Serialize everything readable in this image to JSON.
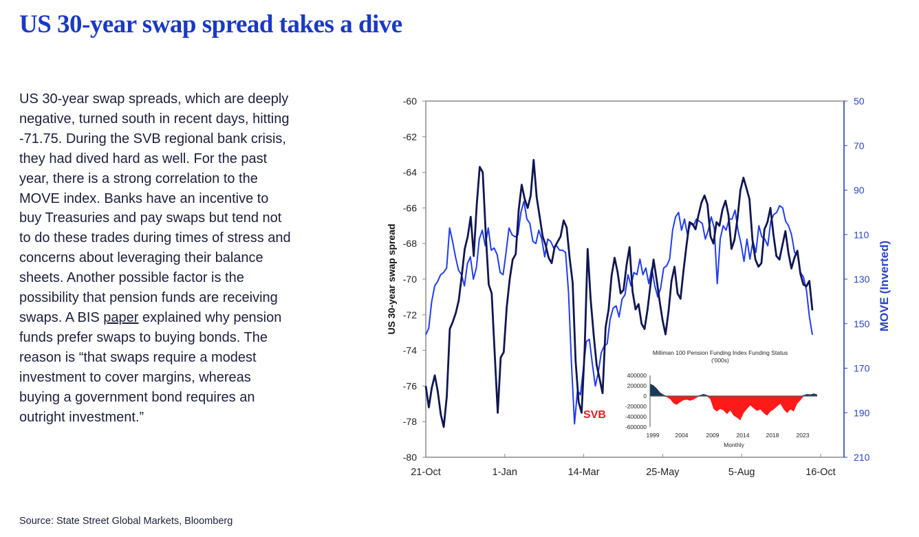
{
  "page": {
    "title": "US 30-year swap spread takes a dive",
    "body_part1": "US 30-year swap spreads, which are deeply negative, turned south in recent days, hitting -71.75. During the SVB regional bank crisis, they had dived hard as well. For the past year, there is a strong correlation to the MOVE index. Banks have an incentive to buy Treasuries and pay swaps but tend not to do these trades during times of stress and concerns about leveraging their balance sheets. Another possible factor is the possibility that pension funds are receiving swaps. A BIS ",
    "body_link": "paper",
    "body_part2": " explained why pension funds prefer swaps to buying bonds. The reason is “that swaps require a modest investment to cover margins, whereas buying a government bond requires an outright investment.”",
    "source": "Source: State Street Global Markets, Bloomberg"
  },
  "chart_data": [
    {
      "type": "line",
      "ylabel": "US 30-year swap spread",
      "y2label": "MOVE (Inverted)",
      "x_ticks": [
        "21-Oct",
        "1-Jan",
        "14-Mar",
        "25-May",
        "5-Aug",
        "16-Oct"
      ],
      "ylim": [
        -80,
        -60
      ],
      "y_ticks": [
        "-60",
        "-62",
        "-64",
        "-66",
        "-68",
        "-70",
        "-72",
        "-74",
        "-76",
        "-78",
        "-80"
      ],
      "y2lim": [
        50,
        210
      ],
      "y2_inverted": true,
      "y2_ticks": [
        "50",
        "70",
        "90",
        "110",
        "130",
        "150",
        "170",
        "190",
        "210"
      ],
      "annotation": "SVB",
      "colors": {
        "swap": "#0f1650",
        "move": "#1f3cf0",
        "axis_right": "#2a44c9",
        "annotation": "#e02020"
      },
      "series": [
        {
          "key": "swap",
          "values": [
            -76,
            -77.2,
            -76.1,
            -75.4,
            -76.3,
            -77.6,
            -78.3,
            -76.6,
            -72.8,
            -72.4,
            -71.9,
            -71.2,
            -69.8,
            -68.3,
            -67.6,
            -66.5,
            -68.7,
            -65.8,
            -63.7,
            -64,
            -67.4,
            -70.3,
            -70.8,
            -74.2,
            -77.5,
            -74.4,
            -74.1,
            -71.6,
            -70,
            -68.9,
            -68.6,
            -66.1,
            -64.7,
            -65.5,
            -66,
            -65.3,
            -63.3,
            -65.4,
            -66.5,
            -67.6,
            -68.1,
            -68.8,
            -69.1,
            -68.2,
            -67.9,
            -67.6,
            -66.7,
            -67.1,
            -68.8,
            -70.2,
            -74.6,
            -76.9,
            -77.5,
            -74,
            -68.3,
            -71.1,
            -73.1,
            -74.8,
            -75.6,
            -76.4,
            -72.7,
            -71.7,
            -69.8,
            -68.8,
            -69.6,
            -70.8,
            -70.6,
            -69.2,
            -68.2,
            -70.7,
            -71.7,
            -71.4,
            -72.5,
            -72.8,
            -71.7,
            -70.3,
            -68.9,
            -70,
            -71.2,
            -72.3,
            -73.1,
            -71.8,
            -70.1,
            -69.3,
            -70.8,
            -71.1,
            -69.5,
            -68.1,
            -66.8,
            -66.9,
            -67.2,
            -66.4,
            -65.7,
            -65.3,
            -65.8,
            -67.6,
            -68,
            -66.8,
            -67,
            -66.1,
            -65.6,
            -66.4,
            -68.3,
            -67.8,
            -66.6,
            -65,
            -64.3,
            -64.9,
            -65.5,
            -67.8,
            -68.9,
            -69.3,
            -69.1,
            -67.2,
            -66.8,
            -66,
            -67.5,
            -68.7,
            -68.9,
            -68.1,
            -67.3,
            -68.5,
            -69.4,
            -68.8,
            -68.4,
            -69.7,
            -70.3,
            -70.4,
            -70.1,
            -71.75
          ]
        },
        {
          "key": "move",
          "values": [
            155,
            152,
            140,
            133,
            131,
            128,
            127,
            125,
            107,
            113,
            120,
            126,
            128,
            133,
            123,
            120,
            130,
            125,
            112,
            108,
            115,
            107,
            117,
            116,
            119,
            127,
            128,
            118,
            107,
            110,
            111,
            110,
            100,
            95,
            103,
            105,
            113,
            114,
            108,
            112,
            120,
            112,
            113,
            116,
            115,
            117,
            117,
            118,
            136,
            168,
            195,
            180,
            182,
            170,
            158,
            157,
            168,
            178,
            172,
            163,
            160,
            159,
            148,
            143,
            142,
            147,
            139,
            137,
            128,
            133,
            127,
            128,
            121,
            128,
            125,
            132,
            125,
            133,
            138,
            134,
            125,
            124,
            121,
            108,
            102,
            100,
            108,
            103,
            110,
            105,
            106,
            103,
            104,
            105,
            112,
            108,
            102,
            107,
            132,
            112,
            106,
            108,
            103,
            103,
            99,
            108,
            114,
            122,
            112,
            121,
            113,
            118,
            106,
            111,
            112,
            115,
            104,
            101,
            100,
            97,
            98,
            104,
            106,
            110,
            118,
            119,
            127,
            129,
            135,
            147,
            155
          ]
        }
      ]
    },
    {
      "type": "area",
      "title": "Milliman 100 Pension Funding Index Funding Status",
      "subtitle": "('000s)",
      "xlabel": "Monthly",
      "x_ticks": [
        "1999",
        "2004",
        "2009",
        "2014",
        "2018",
        "2023"
      ],
      "ylim": [
        -600000,
        400000
      ],
      "y_ticks": [
        "400000",
        "200000",
        "0",
        "-200000",
        "-400000",
        "-600000"
      ],
      "colors": {
        "positive": "#1b3a5a",
        "negative": "#ff1a1a"
      },
      "x_range": [
        1999,
        2024
      ],
      "points": [
        [
          1999,
          240000
        ],
        [
          1999.5,
          210000
        ],
        [
          2000,
          150000
        ],
        [
          2000.5,
          70000
        ],
        [
          2001,
          30000
        ],
        [
          2001.5,
          -20000
        ],
        [
          2002,
          -60000
        ],
        [
          2002.5,
          -140000
        ],
        [
          2003,
          -170000
        ],
        [
          2003.5,
          -120000
        ],
        [
          2004,
          -80000
        ],
        [
          2004.5,
          -70000
        ],
        [
          2005,
          -90000
        ],
        [
          2005.5,
          -70000
        ],
        [
          2006,
          -30000
        ],
        [
          2006.5,
          20000
        ],
        [
          2007,
          40000
        ],
        [
          2007.5,
          20000
        ],
        [
          2008,
          -60000
        ],
        [
          2008.5,
          -250000
        ],
        [
          2009,
          -300000
        ],
        [
          2009.5,
          -250000
        ],
        [
          2010,
          -280000
        ],
        [
          2010.5,
          -350000
        ],
        [
          2011,
          -280000
        ],
        [
          2011.5,
          -380000
        ],
        [
          2012,
          -420000
        ],
        [
          2012.5,
          -470000
        ],
        [
          2013,
          -330000
        ],
        [
          2013.5,
          -250000
        ],
        [
          2014,
          -180000
        ],
        [
          2014.5,
          -240000
        ],
        [
          2015,
          -290000
        ],
        [
          2015.5,
          -260000
        ],
        [
          2016,
          -330000
        ],
        [
          2016.5,
          -380000
        ],
        [
          2017,
          -300000
        ],
        [
          2017.5,
          -260000
        ],
        [
          2018,
          -200000
        ],
        [
          2018.5,
          -150000
        ],
        [
          2019,
          -260000
        ],
        [
          2019.5,
          -330000
        ],
        [
          2020,
          -260000
        ],
        [
          2020.5,
          -300000
        ],
        [
          2021,
          -150000
        ],
        [
          2021.5,
          -80000
        ],
        [
          2022,
          20000
        ],
        [
          2022.5,
          40000
        ],
        [
          2023,
          30000
        ],
        [
          2023.5,
          50000
        ],
        [
          2024,
          30000
        ]
      ]
    }
  ]
}
